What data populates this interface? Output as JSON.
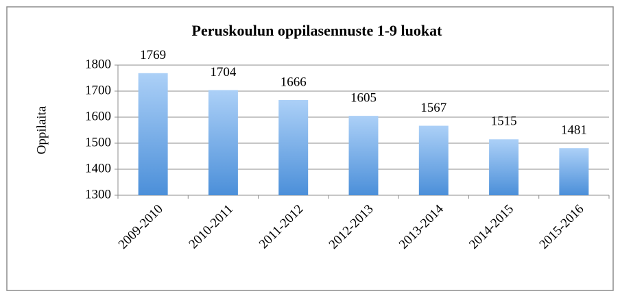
{
  "chart_data": {
    "type": "bar",
    "title": "Peruskoulun oppilasennuste 1-9 luokat",
    "y_label": "Oppilaita",
    "categories": [
      "2009-2010",
      "2010-2011",
      "2011-2012",
      "2012-2013",
      "2013-2014",
      "2014-2015",
      "2015-2016"
    ],
    "values": [
      1769,
      1704,
      1666,
      1605,
      1567,
      1515,
      1481
    ],
    "color": "#6aa6e6",
    "ylim": [
      1300,
      1800
    ],
    "yticks": [
      1300,
      1400,
      1500,
      1600,
      1700,
      1800
    ],
    "grid": true
  }
}
